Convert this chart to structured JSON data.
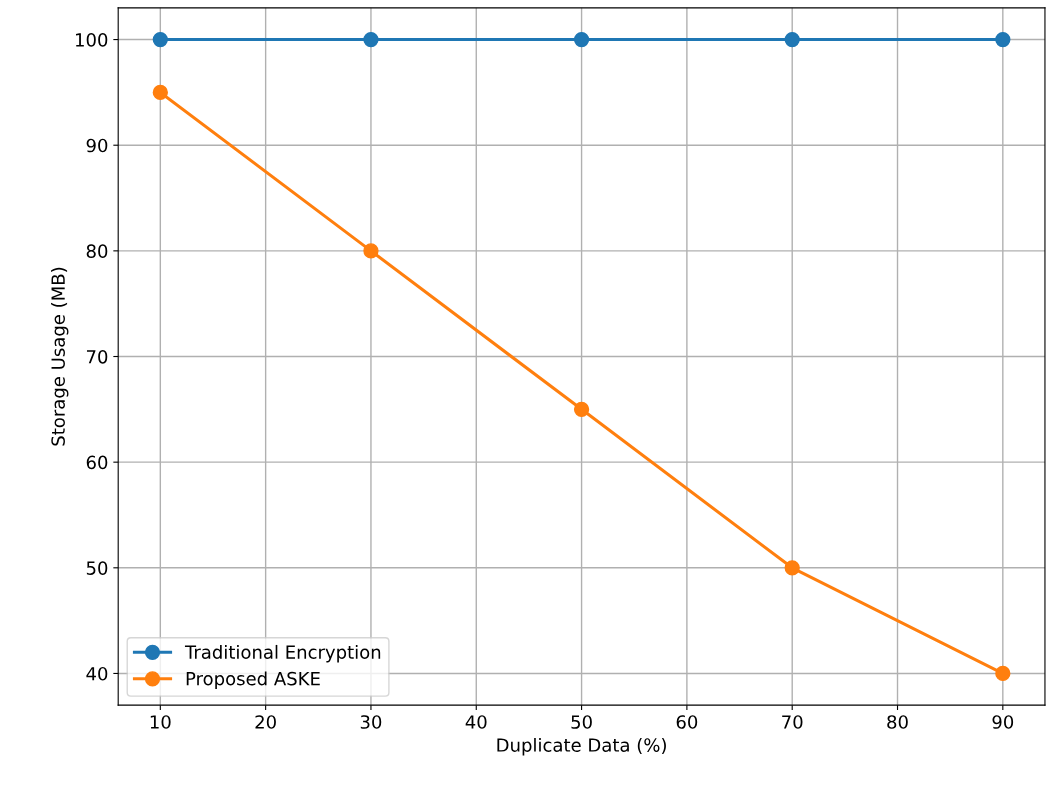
{
  "chart_data": {
    "type": "line",
    "xlabel": "Duplicate Data (%)",
    "ylabel": "Storage Usage (MB)",
    "x": [
      10,
      30,
      50,
      70,
      90
    ],
    "series": [
      {
        "name": "Traditional Encryption",
        "color": "#1f77b4",
        "values": [
          100,
          100,
          100,
          100,
          100
        ]
      },
      {
        "name": "Proposed ASKE",
        "color": "#ff7f0e",
        "values": [
          95,
          80,
          65,
          50,
          40
        ]
      }
    ],
    "xlim": [
      6,
      94
    ],
    "ylim": [
      37,
      103
    ],
    "xticks": [
      10,
      20,
      30,
      40,
      50,
      60,
      70,
      80,
      90
    ],
    "yticks": [
      40,
      50,
      60,
      70,
      80,
      90,
      100
    ],
    "grid": true,
    "legend": "bottom left",
    "marker": "circle",
    "line_style": "solid"
  }
}
